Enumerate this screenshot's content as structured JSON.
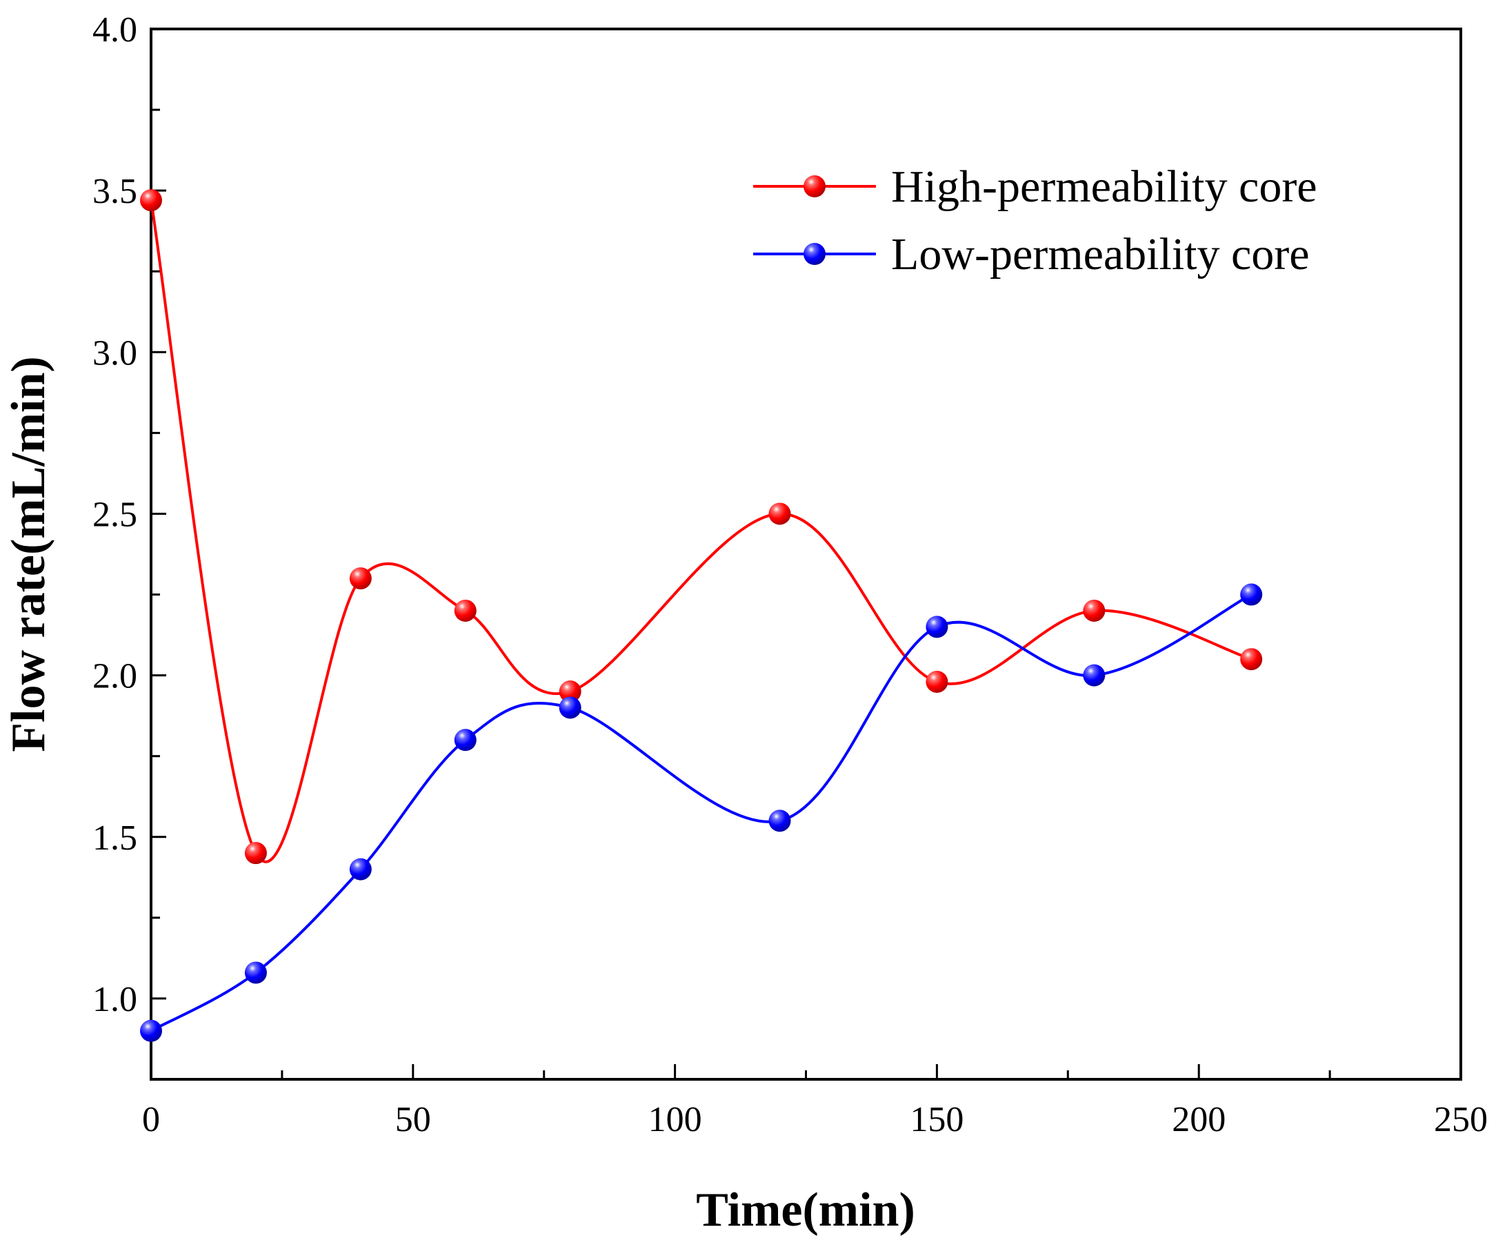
{
  "chart_data": {
    "type": "line",
    "title": "",
    "xlabel": "Time(min)",
    "ylabel": "Flow rate(mL/min)",
    "xlim": [
      0,
      250
    ],
    "ylim": [
      0.75,
      4.0
    ],
    "x_ticks": [
      "0",
      "50",
      "100",
      "150",
      "200",
      "250"
    ],
    "x_tick_values": [
      0,
      50,
      100,
      150,
      200,
      250
    ],
    "y_ticks": [
      "1.0",
      "1.5",
      "2.0",
      "2.5",
      "3.0",
      "3.5",
      "4.0"
    ],
    "y_tick_values": [
      1.0,
      1.5,
      2.0,
      2.5,
      3.0,
      3.5,
      4.0
    ],
    "grid": false,
    "legend_position": "top-right",
    "x": [
      0,
      20,
      40,
      60,
      80,
      120,
      150,
      180,
      210
    ],
    "series": [
      {
        "name": "High-permeability core",
        "color": "#ff0000",
        "values": [
          3.47,
          1.45,
          2.3,
          2.2,
          1.95,
          2.5,
          1.98,
          2.2,
          2.05
        ]
      },
      {
        "name": "Low-permeability core",
        "color": "#0000ff",
        "values": [
          0.9,
          1.08,
          1.4,
          1.8,
          1.9,
          1.55,
          2.15,
          2.0,
          2.25
        ]
      }
    ]
  }
}
